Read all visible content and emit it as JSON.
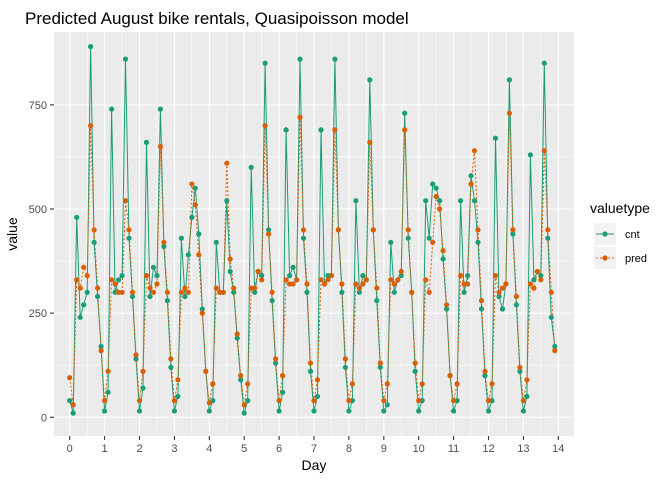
{
  "chart_data": {
    "type": "line",
    "title": "Predicted August bike rentals, Quasipoisson model",
    "xlabel": "Day",
    "ylabel": "value",
    "xlim": [
      -0.45,
      14.45
    ],
    "ylim": [
      -45,
      925
    ],
    "x_ticks": [
      0,
      1,
      2,
      3,
      4,
      5,
      6,
      7,
      8,
      9,
      10,
      11,
      12,
      13,
      14
    ],
    "y_ticks": [
      0,
      250,
      500,
      750
    ],
    "grid": true,
    "legend": {
      "title": "valuetype",
      "position": "right"
    },
    "series": [
      {
        "name": "cnt",
        "color": "#1b9e77",
        "linetype": "solid",
        "x": [
          0.0,
          0.1,
          0.2,
          0.3,
          0.4,
          0.5,
          0.6,
          0.7,
          0.8,
          0.9,
          1.0,
          1.1,
          1.2,
          1.3,
          1.4,
          1.5,
          1.6,
          1.7,
          1.8,
          1.9,
          2.0,
          2.1,
          2.2,
          2.3,
          2.4,
          2.5,
          2.6,
          2.7,
          2.8,
          2.9,
          3.0,
          3.1,
          3.2,
          3.3,
          3.4,
          3.5,
          3.6,
          3.7,
          3.8,
          3.9,
          4.0,
          4.1,
          4.2,
          4.3,
          4.4,
          4.5,
          4.6,
          4.7,
          4.8,
          4.9,
          5.0,
          5.1,
          5.2,
          5.3,
          5.4,
          5.5,
          5.6,
          5.7,
          5.8,
          5.9,
          6.0,
          6.1,
          6.2,
          6.3,
          6.4,
          6.5,
          6.6,
          6.7,
          6.8,
          6.9,
          7.0,
          7.1,
          7.2,
          7.3,
          7.4,
          7.5,
          7.6,
          7.7,
          7.8,
          7.9,
          8.0,
          8.1,
          8.2,
          8.3,
          8.4,
          8.5,
          8.6,
          8.7,
          8.8,
          8.9,
          9.0,
          9.1,
          9.2,
          9.3,
          9.4,
          9.5,
          9.6,
          9.7,
          9.8,
          9.9,
          10.0,
          10.1,
          10.2,
          10.3,
          10.4,
          10.5,
          10.6,
          10.7,
          10.8,
          10.9,
          11.0,
          11.1,
          11.2,
          11.3,
          11.4,
          11.5,
          11.6,
          11.7,
          11.8,
          11.9,
          12.0,
          12.1,
          12.2,
          12.3,
          12.4,
          12.5,
          12.6,
          12.7,
          12.8,
          12.9,
          13.0,
          13.1,
          13.2,
          13.3,
          13.4,
          13.5,
          13.6,
          13.7,
          13.8,
          13.9
        ],
        "values": [
          40,
          10,
          480,
          240,
          270,
          300,
          890,
          420,
          290,
          170,
          15,
          60,
          740,
          300,
          330,
          340,
          860,
          430,
          290,
          140,
          15,
          70,
          660,
          290,
          360,
          340,
          740,
          410,
          280,
          120,
          15,
          50,
          430,
          290,
          390,
          480,
          550,
          440,
          260,
          110,
          15,
          40,
          420,
          300,
          300,
          520,
          350,
          300,
          190,
          90,
          10,
          40,
          600,
          300,
          350,
          340,
          850,
          450,
          280,
          130,
          15,
          60,
          690,
          340,
          360,
          330,
          860,
          430,
          300,
          110,
          15,
          50,
          690,
          320,
          340,
          340,
          860,
          450,
          300,
          120,
          15,
          40,
          520,
          300,
          340,
          330,
          810,
          450,
          280,
          120,
          15,
          30,
          420,
          300,
          330,
          340,
          730,
          430,
          300,
          110,
          15,
          40,
          520,
          430,
          560,
          550,
          520,
          380,
          260,
          100,
          15,
          40,
          520,
          300,
          340,
          580,
          520,
          420,
          260,
          100,
          15,
          40,
          670,
          290,
          260,
          320,
          810,
          440,
          270,
          110,
          15,
          50,
          630,
          330,
          350,
          340,
          850,
          430,
          240,
          170
        ]
      },
      {
        "name": "pred",
        "color": "#d95f02",
        "linetype": "dashed",
        "x": [
          0.0,
          0.1,
          0.2,
          0.3,
          0.4,
          0.5,
          0.6,
          0.7,
          0.8,
          0.9,
          1.0,
          1.1,
          1.2,
          1.3,
          1.4,
          1.5,
          1.6,
          1.7,
          1.8,
          1.9,
          2.0,
          2.1,
          2.2,
          2.3,
          2.4,
          2.5,
          2.6,
          2.7,
          2.8,
          2.9,
          3.0,
          3.1,
          3.2,
          3.3,
          3.4,
          3.5,
          3.6,
          3.7,
          3.8,
          3.9,
          4.0,
          4.1,
          4.2,
          4.3,
          4.4,
          4.5,
          4.6,
          4.7,
          4.8,
          4.9,
          5.0,
          5.1,
          5.2,
          5.3,
          5.4,
          5.5,
          5.6,
          5.7,
          5.8,
          5.9,
          6.0,
          6.1,
          6.2,
          6.3,
          6.4,
          6.5,
          6.6,
          6.7,
          6.8,
          6.9,
          7.0,
          7.1,
          7.2,
          7.3,
          7.4,
          7.5,
          7.6,
          7.7,
          7.8,
          7.9,
          8.0,
          8.1,
          8.2,
          8.3,
          8.4,
          8.5,
          8.6,
          8.7,
          8.8,
          8.9,
          9.0,
          9.1,
          9.2,
          9.3,
          9.4,
          9.5,
          9.6,
          9.7,
          9.8,
          9.9,
          10.0,
          10.1,
          10.2,
          10.3,
          10.4,
          10.5,
          10.6,
          10.7,
          10.8,
          10.9,
          11.0,
          11.1,
          11.2,
          11.3,
          11.4,
          11.5,
          11.6,
          11.7,
          11.8,
          11.9,
          12.0,
          12.1,
          12.2,
          12.3,
          12.4,
          12.5,
          12.6,
          12.7,
          12.8,
          12.9,
          13.0,
          13.1,
          13.2,
          13.3,
          13.4,
          13.5,
          13.6,
          13.7,
          13.8,
          13.9
        ],
        "values": [
          95,
          30,
          330,
          310,
          360,
          340,
          700,
          450,
          310,
          160,
          40,
          110,
          330,
          320,
          300,
          300,
          520,
          450,
          300,
          150,
          40,
          110,
          340,
          310,
          300,
          320,
          650,
          420,
          300,
          140,
          40,
          90,
          300,
          310,
          300,
          560,
          510,
          390,
          250,
          110,
          35,
          80,
          310,
          300,
          300,
          610,
          380,
          310,
          200,
          100,
          30,
          80,
          310,
          310,
          350,
          330,
          700,
          440,
          300,
          140,
          40,
          100,
          330,
          320,
          320,
          330,
          720,
          450,
          320,
          130,
          40,
          90,
          330,
          320,
          330,
          340,
          690,
          450,
          320,
          140,
          40,
          80,
          320,
          310,
          320,
          330,
          660,
          450,
          310,
          130,
          40,
          80,
          330,
          320,
          330,
          350,
          690,
          450,
          300,
          130,
          40,
          80,
          330,
          300,
          420,
          530,
          500,
          400,
          270,
          100,
          40,
          80,
          340,
          320,
          320,
          560,
          640,
          450,
          280,
          110,
          40,
          80,
          340,
          300,
          310,
          320,
          730,
          450,
          290,
          120,
          40,
          90,
          320,
          310,
          350,
          330,
          640,
          450,
          300,
          160
        ]
      }
    ]
  }
}
